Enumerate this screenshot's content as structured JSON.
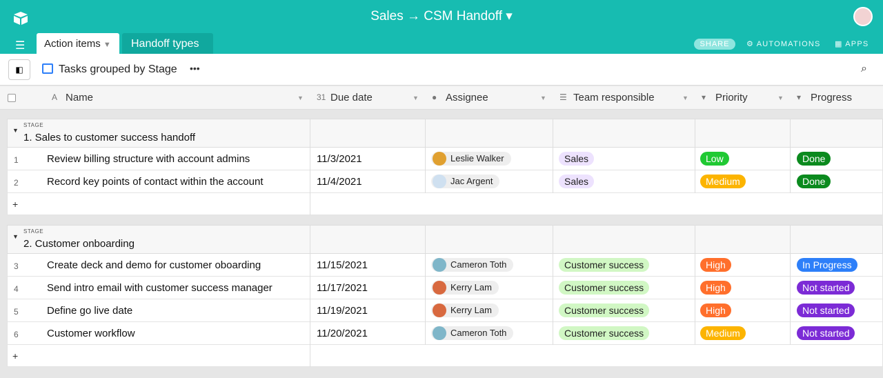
{
  "header": {
    "title": "Sales → CSM Handoff",
    "tabs": [
      "Action items",
      "Handoff types"
    ],
    "share": "SHARE",
    "automations": "AUTOMATIONS",
    "apps": "APPS"
  },
  "toolbar": {
    "view": "Tasks grouped by Stage"
  },
  "table": {
    "columns": [
      "Name",
      "Due date",
      "Assignee",
      "Team responsible",
      "Priority",
      "Progress"
    ],
    "add_row": "+",
    "groups": [
      {
        "label": "STAGE",
        "name": "1. Sales to customer success handoff",
        "rows": [
          {
            "index": 1,
            "name": "Review billing structure with account admins",
            "due": "11/3/2021",
            "assignee": "Leslie Walker",
            "team": "Sales",
            "priority": "Low",
            "progress": "Done"
          },
          {
            "index": 2,
            "name": "Record key points of contact within the account",
            "due": "11/4/2021",
            "assignee": "Jac Argent",
            "team": "Sales",
            "priority": "Medium",
            "progress": "Done"
          }
        ]
      },
      {
        "label": "STAGE",
        "name": "2. Customer onboarding",
        "rows": [
          {
            "index": 3,
            "name": "Create deck and demo for customer oboarding",
            "due": "11/15/2021",
            "assignee": "Cameron Toth",
            "team": "Customer success",
            "priority": "High",
            "progress": "In Progress"
          },
          {
            "index": 4,
            "name": "Send intro email with customer success manager",
            "due": "11/17/2021",
            "assignee": "Kerry Lam",
            "team": "Customer success",
            "priority": "High",
            "progress": "Not started"
          },
          {
            "index": 5,
            "name": "Define go live date",
            "due": "11/19/2021",
            "assignee": "Kerry Lam",
            "team": "Customer success",
            "priority": "High",
            "progress": "Not started"
          },
          {
            "index": 6,
            "name": "Customer workflow",
            "due": "11/20/2021",
            "assignee": "Cameron Toth",
            "team": "Customer success",
            "priority": "Medium",
            "progress": "Not started"
          }
        ]
      }
    ]
  }
}
